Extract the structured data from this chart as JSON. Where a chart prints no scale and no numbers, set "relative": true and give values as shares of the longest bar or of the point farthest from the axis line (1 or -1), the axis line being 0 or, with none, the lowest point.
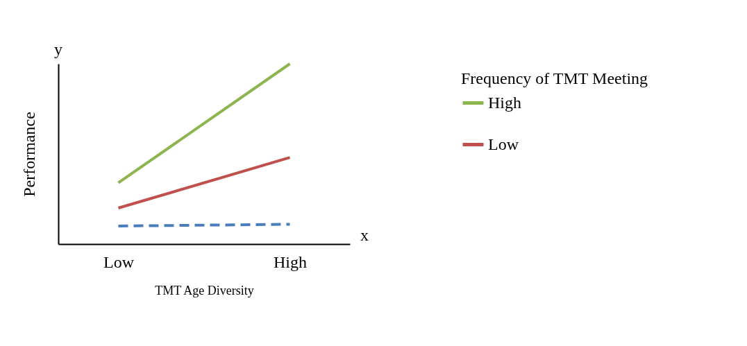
{
  "chart_data": {
    "type": "line",
    "relative": true,
    "xlabel": "TMT Age Diversity",
    "ylabel": "Performance",
    "legend_title": "Frequency of TMT Meeting",
    "legend": "top right",
    "categories": [
      "Low",
      "High"
    ],
    "series": [
      {
        "name": "High",
        "color": "#8cb44f",
        "values": [
          0.34,
          1
        ]
      },
      {
        "name": "Low",
        "color": "#c0504d",
        "values": [
          0.2,
          0.48
        ]
      },
      {
        "color": "#4a7ebb",
        "line_style": "dashed",
        "values": [
          0.1,
          0.11
        ]
      }
    ],
    "annotations": [
      "y",
      "x"
    ]
  }
}
